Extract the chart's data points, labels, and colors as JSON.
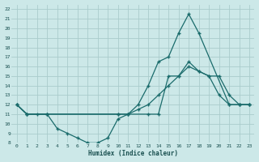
{
  "xlabel": "Humidex (Indice chaleur)",
  "bg_color": "#cce8e8",
  "grid_color": "#aacccc",
  "line_color": "#1a6b6b",
  "xlim": [
    -0.5,
    23.5
  ],
  "ylim": [
    8,
    22.5
  ],
  "xtick_labels": [
    "0",
    "1",
    "2",
    "3",
    "4",
    "5",
    "6",
    "7",
    "8",
    "9",
    "10",
    "11",
    "12",
    "13",
    "14",
    "15",
    "16",
    "17",
    "18",
    "19",
    "20",
    "21",
    "22",
    "23"
  ],
  "xticks": [
    0,
    1,
    2,
    3,
    4,
    5,
    6,
    7,
    8,
    9,
    10,
    11,
    12,
    13,
    14,
    15,
    16,
    17,
    18,
    19,
    20,
    21,
    22,
    23
  ],
  "yticks": [
    8,
    9,
    10,
    11,
    12,
    13,
    14,
    15,
    16,
    17,
    18,
    19,
    20,
    21,
    22
  ],
  "series1_x": [
    0,
    1,
    2,
    3,
    10,
    11,
    12,
    13,
    14,
    15,
    16,
    17,
    18,
    21,
    22,
    23
  ],
  "series1_y": [
    12,
    11,
    11,
    11,
    11,
    11,
    12,
    14,
    16.5,
    17,
    19.5,
    21.5,
    19.5,
    12,
    12,
    12
  ],
  "series2_x": [
    0,
    1,
    3,
    4,
    5,
    6,
    7,
    8,
    9,
    10,
    11,
    13,
    14,
    15,
    16,
    17,
    18,
    19,
    20,
    21,
    22,
    23
  ],
  "series2_y": [
    12,
    11,
    11,
    9.5,
    9,
    8.5,
    8,
    8,
    8.5,
    10.5,
    11,
    11,
    11,
    15,
    15,
    16.5,
    15.5,
    15,
    13,
    12,
    12,
    12
  ],
  "series3_x": [
    0,
    1,
    3,
    10,
    11,
    12,
    13,
    14,
    15,
    16,
    17,
    18,
    19,
    20,
    21,
    22,
    23
  ],
  "series3_y": [
    12,
    11,
    11,
    11,
    11,
    11.5,
    12,
    13,
    14,
    15,
    16,
    15.5,
    15,
    15,
    13,
    12,
    12
  ]
}
